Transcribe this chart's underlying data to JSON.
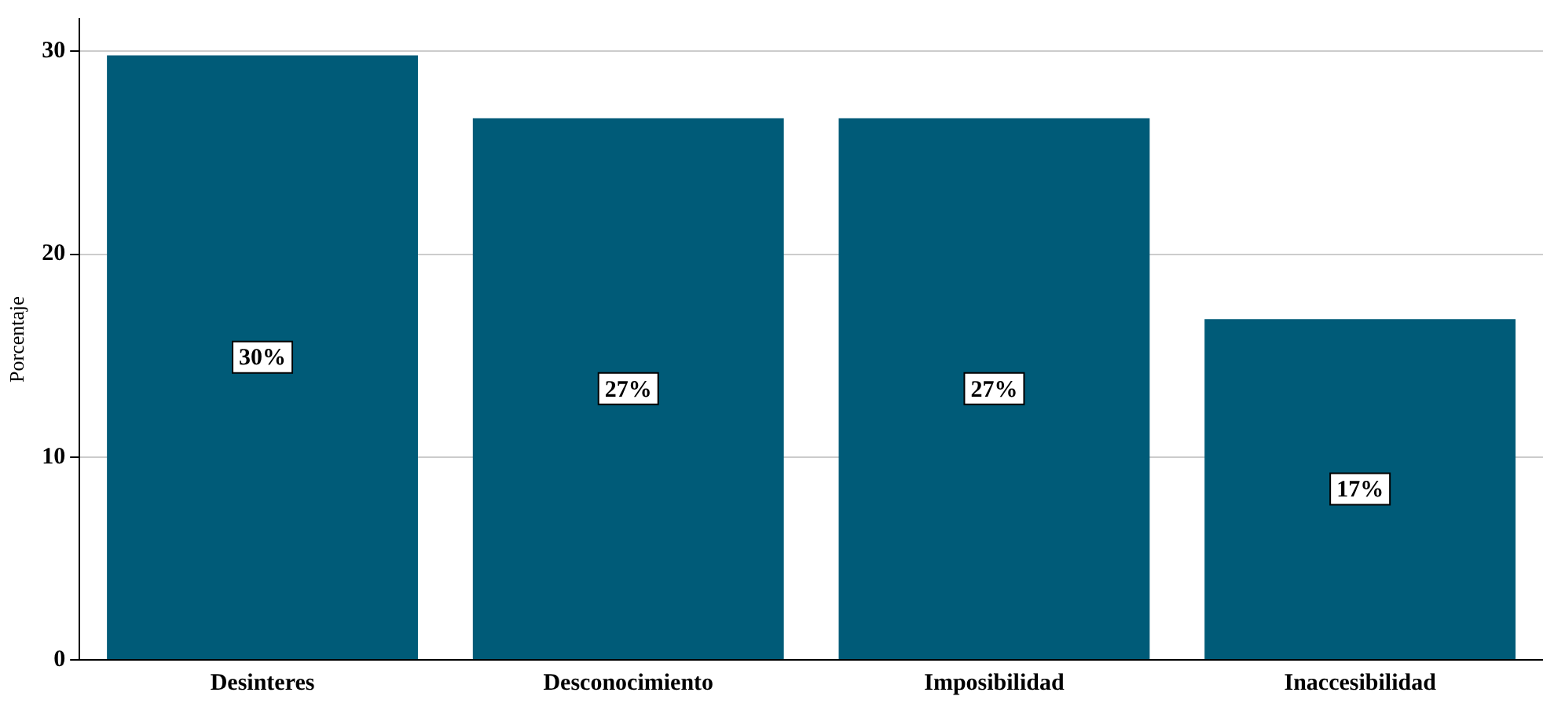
{
  "chart_data": {
    "type": "bar",
    "ylabel": "Porcentaje",
    "categories": [
      "Desinteres",
      "Desconocimiento",
      "Imposibilidad",
      "Inaccesibilidad"
    ],
    "values": [
      29.8,
      26.7,
      26.7,
      16.8
    ],
    "value_labels": [
      "30%",
      "27%",
      "27%",
      "17%"
    ],
    "color": "#005b78",
    "ylim": [
      0,
      31.6
    ],
    "yticks": [
      0,
      10,
      20,
      30
    ],
    "grid": "y",
    "legend": false
  }
}
